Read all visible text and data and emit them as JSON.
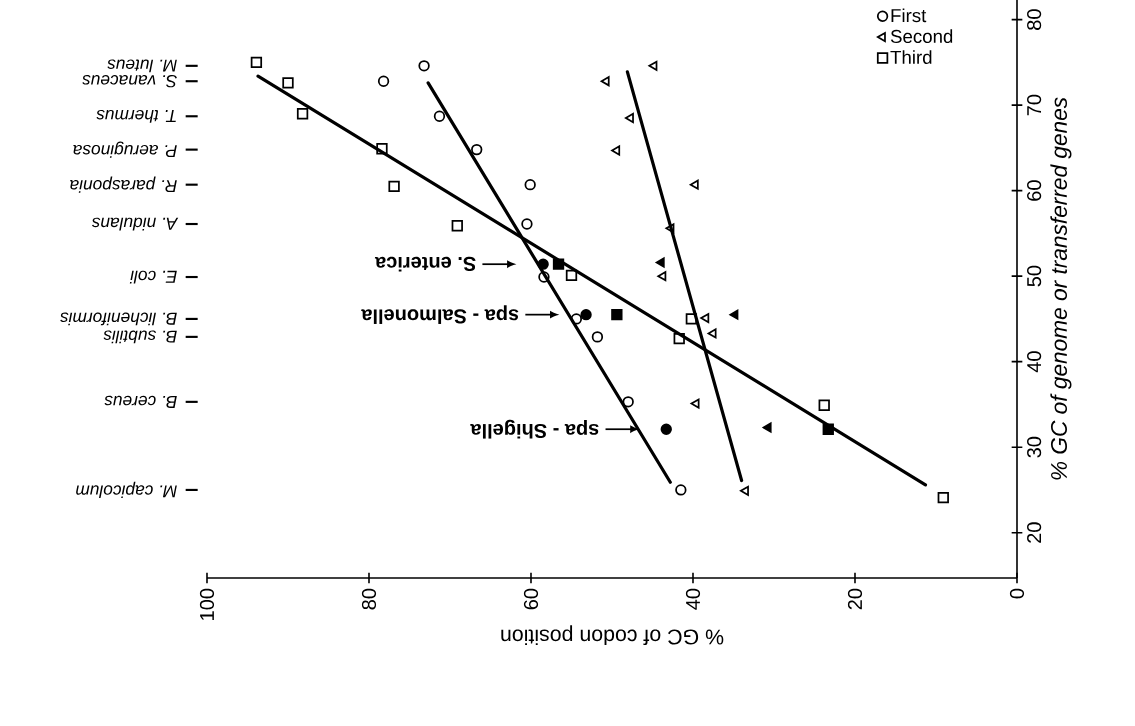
{
  "chart_data": {
    "type": "scatter",
    "xlabel": "% GC of codon position",
    "ylabel": "*% GC of genome or transferred genes*",
    "xlim": [
      100,
      0
    ],
    "xticks": [
      0,
      20,
      40,
      60,
      80,
      100
    ],
    "ylim": [
      14.7,
      82.3
    ],
    "yticks": [
      20,
      30,
      40,
      50,
      60,
      70,
      80
    ],
    "grid": false,
    "legend": "top right",
    "annotations": [
      "*M. luteus*",
      "*S. vanaceus*",
      "*T. thermus*",
      "*P. aeruginosa*",
      "*R. parasponia*",
      "*A. nidulans*",
      "*E. coli*",
      "*B. licheniformis*",
      "*B. subtilis*",
      "*B. cereus*",
      "*M. capicolum*",
      "S. enterica",
      "spa - Salmonella",
      "spa - Shigella"
    ],
    "series": [
      {
        "name": "First",
        "marker": "circle",
        "color": "#000000",
        "x": [
          73.2,
          78.2,
          71.3,
          66.7,
          60.1,
          60.5,
          58.4,
          54.4,
          51.8,
          48.0,
          41.5
        ],
        "values": [
          74.6,
          72.8,
          68.7,
          64.8,
          60.7,
          56.1,
          49.9,
          45.0,
          42.9,
          35.3,
          25.0
        ]
      },
      {
        "name": "Second",
        "marker": "triangle",
        "color": "#000000",
        "x": [
          44.8,
          50.7,
          47.7,
          49.4,
          39.7,
          42.7,
          43.7,
          38.4,
          37.5,
          39.6,
          33.5
        ],
        "values": [
          74.6,
          72.8,
          68.5,
          64.7,
          60.7,
          55.6,
          50.0,
          45.1,
          43.3,
          35.1,
          24.9
        ]
      },
      {
        "name": "Third",
        "marker": "square",
        "color": "#000000",
        "x": [
          93.9,
          90.0,
          88.2,
          78.4,
          76.9,
          69.1,
          55.0,
          40.2,
          41.7,
          23.8,
          9.1
        ],
        "values": [
          75.0,
          72.6,
          69.0,
          64.9,
          60.5,
          55.9,
          50.1,
          45.0,
          42.7,
          34.9,
          24.1
        ]
      },
      {
        "marker": "circle",
        "color": "#000000",
        "x": [
          58.5,
          53.2,
          43.3
        ],
        "values": [
          51.4,
          45.5,
          32.1
        ]
      },
      {
        "marker": "triangle",
        "color": "#000000",
        "x": [
          43.9,
          34.8,
          30.7
        ],
        "values": [
          51.6,
          45.5,
          32.3
        ]
      },
      {
        "marker": "square",
        "color": "#000000",
        "x": [
          56.6,
          49.4,
          23.3
        ],
        "values": [
          51.4,
          45.5,
          32.1
        ]
      },
      {
        "type": "line",
        "marker": "none",
        "line_style": "solid",
        "color": "#000000",
        "x": [
          72.7,
          42.8
        ],
        "values": [
          72.6,
          25.9
        ]
      },
      {
        "type": "line",
        "marker": "none",
        "line_style": "solid",
        "color": "#000000",
        "x": [
          48.1,
          34.0
        ],
        "values": [
          73.9,
          26.1
        ]
      },
      {
        "type": "line",
        "marker": "none",
        "line_style": "solid",
        "color": "#000000",
        "x": [
          93.7,
          11.3
        ],
        "values": [
          73.4,
          25.6
        ]
      }
    ]
  }
}
